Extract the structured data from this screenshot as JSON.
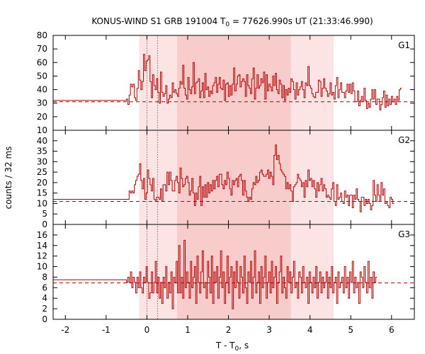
{
  "chart_data": {
    "type": "line",
    "title_parts": {
      "prefix": "KONUS-WIND S1 GRB 191004 T",
      "sub": "0",
      "suffix": " = 77626.990s UT (21:33:46.990)"
    },
    "xlabel_parts": {
      "prefix": "T - T",
      "sub": "0",
      "suffix": ", s"
    },
    "ylabel": "counts / 32 ms",
    "xlim": [
      -2.3,
      6.56
    ],
    "xticks": [
      -2,
      -1,
      0,
      1,
      2,
      3,
      4,
      5,
      6
    ],
    "xtick_labels": [
      "-2",
      "-1",
      "0",
      "1",
      "2",
      "3",
      "4",
      "5",
      "6"
    ],
    "vertical_dotted_lines_x": [
      0.0,
      0.26
    ],
    "shaded_intervals": [
      {
        "from": -0.19,
        "to": 4.58,
        "shade": "light"
      },
      {
        "from": 0.74,
        "to": 3.53,
        "shade": "dark"
      }
    ],
    "colors": {
      "line": "#b00000",
      "shade_light": "#fde4e4",
      "shade_dark": "#f9cccc",
      "dotted": "#8a3c3c"
    },
    "panels": [
      {
        "label": "G1",
        "ylim": [
          10,
          80
        ],
        "yticks": [
          10,
          20,
          30,
          40,
          50,
          60,
          70,
          80
        ],
        "ytick_labels": [
          "10",
          "20",
          "30",
          "40",
          "50",
          "60",
          "70",
          "80"
        ],
        "background": 31,
        "pre_level": 32,
        "pre_start": -2.3,
        "pre_end": -0.5,
        "t_end": 6.56,
        "binwidth": 0.032,
        "values": [
          33,
          29,
          36,
          44,
          42,
          44,
          34,
          32,
          41,
          54,
          47,
          40,
          46,
          66,
          54,
          61,
          62,
          65,
          46,
          34,
          51,
          43,
          40,
          48,
          38,
          30,
          53,
          38,
          35,
          37,
          43,
          30,
          33,
          36,
          34,
          45,
          38,
          40,
          37,
          35,
          41,
          46,
          44,
          58,
          41,
          36,
          33,
          49,
          40,
          37,
          42,
          60,
          37,
          45,
          46,
          48,
          34,
          39,
          45,
          34,
          52,
          40,
          42,
          35,
          39,
          37,
          43,
          45,
          49,
          38,
          44,
          49,
          41,
          40,
          47,
          32,
          44,
          45,
          35,
          43,
          36,
          44,
          56,
          39,
          44,
          50,
          51,
          42,
          46,
          48,
          46,
          35,
          51,
          43,
          41,
          37,
          48,
          56,
          33,
          41,
          51,
          41,
          43,
          48,
          45,
          53,
          33,
          51,
          39,
          44,
          42,
          39,
          50,
          43,
          52,
          40,
          37,
          47,
          44,
          34,
          43,
          32,
          40,
          36,
          41,
          38,
          48,
          46,
          40,
          33,
          45,
          36,
          40,
          42,
          46,
          40,
          34,
          45,
          43,
          57,
          43,
          41,
          37,
          35,
          34,
          38,
          38,
          47,
          46,
          35,
          41,
          48,
          41,
          39,
          35,
          37,
          45,
          36,
          38,
          33,
          43,
          49,
          34,
          40,
          45,
          38,
          38,
          34,
          39,
          44,
          38,
          44,
          37,
          45,
          39,
          31,
          31,
          39,
          28,
          32,
          35,
          31,
          41,
          32,
          26,
          30,
          27,
          33,
          40,
          33,
          40,
          29,
          33,
          33,
          25,
          29,
          34,
          39,
          27,
          36,
          28,
          33,
          29,
          35,
          31,
          33,
          29,
          35,
          32,
          40,
          41
        ]
      },
      {
        "label": "G2",
        "ylim": [
          0,
          45
        ],
        "yticks": [
          0,
          5,
          10,
          15,
          20,
          25,
          30,
          35,
          40
        ],
        "ytick_labels": [
          "0",
          "5",
          "10",
          "15",
          "20",
          "25",
          "30",
          "35",
          "40"
        ],
        "background": 11,
        "pre_level": 12,
        "pre_start": -2.3,
        "pre_end": -0.5,
        "t_end": 6.56,
        "binwidth": 0.032,
        "values": [
          12,
          12,
          16,
          15,
          16,
          15,
          19,
          21,
          23,
          24,
          29,
          21,
          17,
          22,
          12,
          15,
          26,
          22,
          19,
          16,
          22,
          12,
          11,
          13,
          13,
          12,
          17,
          11,
          19,
          19,
          16,
          25,
          19,
          25,
          21,
          16,
          16,
          21,
          23,
          20,
          15,
          27,
          22,
          18,
          19,
          22,
          23,
          20,
          14,
          16,
          22,
          15,
          9,
          15,
          12,
          18,
          23,
          9,
          18,
          13,
          19,
          13,
          20,
          15,
          19,
          16,
          21,
          17,
          21,
          23,
          18,
          24,
          24,
          19,
          17,
          21,
          19,
          25,
          22,
          17,
          14,
          21,
          19,
          21,
          22,
          18,
          23,
          24,
          21,
          14,
          21,
          16,
          13,
          11,
          13,
          12,
          17,
          20,
          19,
          23,
          20,
          21,
          25,
          26,
          24,
          23,
          23,
          24,
          26,
          22,
          25,
          23,
          19,
          33,
          38,
          31,
          33,
          29,
          26,
          25,
          24,
          23,
          17,
          20,
          17,
          19,
          16,
          11,
          18,
          19,
          20,
          24,
          22,
          21,
          18,
          20,
          13,
          21,
          18,
          26,
          21,
          22,
          18,
          21,
          17,
          13,
          20,
          16,
          19,
          22,
          16,
          19,
          17,
          13,
          14,
          13,
          12,
          17,
          20,
          11,
          9,
          19,
          12,
          13,
          15,
          11,
          10,
          16,
          13,
          14,
          9,
          14,
          14,
          8,
          14,
          12,
          17,
          12,
          11,
          6,
          13,
          13,
          9,
          12,
          10,
          12,
          10,
          7,
          9,
          21,
          14,
          11,
          19,
          14,
          11,
          20,
          14,
          17,
          10,
          11,
          9,
          8,
          13,
          12,
          10
        ]
      },
      {
        "label": "G3",
        "ylim": [
          0,
          18
        ],
        "yticks": [
          0,
          2,
          4,
          6,
          8,
          10,
          12,
          14,
          16
        ],
        "ytick_labels": [
          "0",
          "2",
          "4",
          "6",
          "8",
          "10",
          "12",
          "14",
          "16"
        ],
        "background": 6.9,
        "pre_level": 7.5,
        "pre_start": -2.3,
        "pre_end": -0.5,
        "t_end": 6.56,
        "binwidth": 0.032,
        "values": [
          7,
          8,
          7,
          9,
          6,
          8,
          7,
          5,
          8,
          6,
          9,
          6,
          5,
          8,
          7,
          10,
          7,
          4,
          5,
          9,
          5,
          7,
          11,
          5,
          8,
          4,
          7,
          3,
          8,
          6,
          10,
          4,
          7,
          5,
          9,
          2,
          8,
          7,
          11,
          5,
          14,
          5,
          8,
          4,
          15,
          6,
          9,
          7,
          4,
          11,
          6,
          8,
          10,
          3,
          12,
          7,
          5,
          9,
          13,
          6,
          7,
          4,
          11,
          8,
          5,
          12,
          3,
          9,
          7,
          10,
          4,
          8,
          13,
          6,
          9,
          3,
          7,
          12,
          5,
          8,
          10,
          2,
          9,
          6,
          11,
          7,
          4,
          10,
          8,
          5,
          12,
          6,
          3,
          9,
          7,
          11,
          4,
          8,
          13,
          5,
          7,
          9,
          3,
          10,
          6,
          8,
          12,
          4,
          7,
          9,
          5,
          11,
          6,
          8,
          10,
          3,
          7,
          9,
          12,
          5,
          8,
          6,
          4,
          10,
          7,
          9,
          5,
          8,
          11,
          6,
          7,
          4,
          9,
          8,
          5,
          10,
          7,
          6,
          8,
          3,
          9,
          7,
          5,
          8,
          6,
          10,
          4,
          7,
          9,
          5,
          8,
          6,
          7,
          9,
          4,
          8,
          6,
          10,
          5,
          7,
          8,
          3,
          9,
          6,
          7,
          8,
          5,
          10,
          6,
          8,
          4,
          9,
          7,
          11,
          5,
          8,
          6,
          7,
          3,
          9,
          8,
          6,
          10,
          7,
          5,
          11,
          6,
          8,
          4,
          9,
          7,
          8
        ]
      }
    ]
  }
}
